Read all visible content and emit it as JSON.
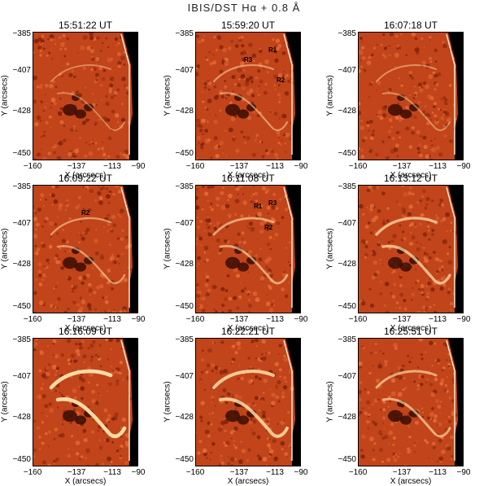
{
  "figure": {
    "title": "IBIS/DST Hα + 0.8 Å"
  },
  "axes": {
    "xlabel": "X (arcsecs)",
    "ylabel": "Y (arcsecs)",
    "xticks": [
      "−160",
      "−137",
      "−113",
      "−90"
    ],
    "yticks": [
      "−385",
      "−407",
      "−428",
      "−450"
    ]
  },
  "panels": [
    {
      "time": "15:51:22 UT",
      "brightness": 0.2,
      "labels": []
    },
    {
      "time": "15:59:20 UT",
      "brightness": 0.3,
      "labels": [
        {
          "text": "R1"
        },
        {
          "text": "R2"
        },
        {
          "text": "R3"
        }
      ]
    },
    {
      "time": "16:07:18 UT",
      "brightness": 0.25,
      "labels": []
    },
    {
      "time": "16:09:22 UT",
      "brightness": 0.35,
      "labels": [
        {
          "text": "R2"
        }
      ]
    },
    {
      "time": "16:11:08 UT",
      "brightness": 0.45,
      "labels": [
        {
          "text": "R2"
        },
        {
          "text": "R1"
        },
        {
          "text": "R3"
        }
      ]
    },
    {
      "time": "16:13:12 UT",
      "brightness": 0.6,
      "labels": []
    },
    {
      "time": "16:16:09 UT",
      "brightness": 0.9,
      "labels": []
    },
    {
      "time": "16:22:21 UT",
      "brightness": 0.75,
      "labels": []
    },
    {
      "time": "16:25:51 UT",
      "brightness": 0.5,
      "labels": []
    }
  ],
  "colors": {
    "background": "#c2441a",
    "dark": "#3a0d04",
    "bright": "#ffe6b0",
    "offlimb": "#000000"
  }
}
